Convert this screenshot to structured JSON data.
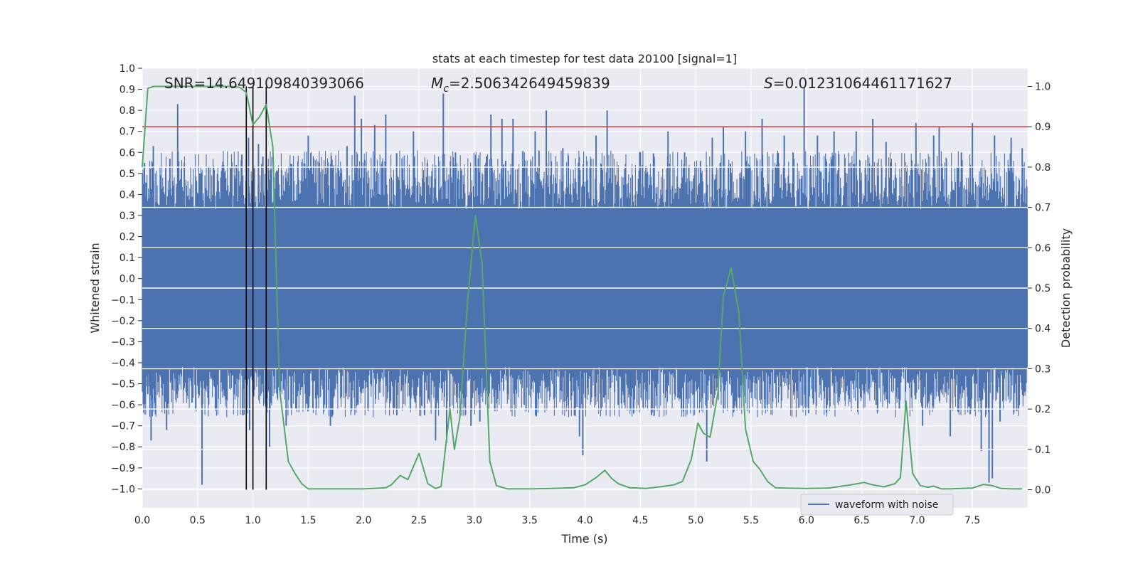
{
  "chart_data": {
    "type": "line",
    "title": "stats at each timestep for test data 20100 [signal=1]",
    "xlabel": "Time (s)",
    "ylabel": "Whitened strain",
    "y2label": "Detection probability",
    "xlim": [
      0.0,
      8.0
    ],
    "ylim": [
      -1.09,
      1.0
    ],
    "y2lim": [
      -0.045,
      1.045
    ],
    "xticks": [
      "0.0",
      "0.5",
      "1.0",
      "1.5",
      "2.0",
      "2.5",
      "3.0",
      "3.5",
      "4.0",
      "4.5",
      "5.0",
      "5.5",
      "6.0",
      "6.5",
      "7.0",
      "7.5"
    ],
    "yticks": [
      "1.0",
      "0.9",
      "0.8",
      "0.7",
      "0.6",
      "0.5",
      "0.4",
      "0.3",
      "0.2",
      "0.1",
      "0.0",
      "−0.1",
      "−0.2",
      "−0.3",
      "−0.4",
      "−0.5",
      "−0.6",
      "−0.7",
      "−0.8",
      "−0.9",
      "−1.0"
    ],
    "y2ticks": [
      "1.0",
      "0.9",
      "0.8",
      "0.7",
      "0.6",
      "0.5",
      "0.4",
      "0.3",
      "0.2",
      "0.1",
      "0.0"
    ],
    "annotations": {
      "snr": "SNR=14.649109840393066",
      "mc_symbol": "M",
      "mc_sub": "c",
      "mc_value": "=2.506342649459839",
      "s_symbol": "S",
      "s_value": "=0.01231064461171627"
    },
    "legend": {
      "label": "waveform with noise",
      "position": "lower-right"
    },
    "threshold": {
      "y2": 0.9,
      "color": "#c44e52"
    },
    "vlines_x": [
      0.94,
      1.0,
      1.12
    ],
    "waveform": {
      "name": "waveform with noise",
      "color": "#4c72b0",
      "x_range": [
        0.0,
        8.0
      ],
      "core_range": [
        -0.42,
        0.33
      ],
      "spikes": [
        [
          0.02,
          0.55
        ],
        [
          0.05,
          -0.55
        ],
        [
          0.1,
          0.63
        ],
        [
          0.08,
          -0.77
        ],
        [
          0.22,
          -0.72
        ],
        [
          0.32,
          0.83
        ],
        [
          0.38,
          0.55
        ],
        [
          0.25,
          0.57
        ],
        [
          0.54,
          -0.98
        ],
        [
          0.52,
          0.5
        ],
        [
          0.6,
          -0.6
        ],
        [
          0.85,
          0.54
        ],
        [
          0.9,
          0.59
        ],
        [
          0.91,
          -0.65
        ],
        [
          0.96,
          0.67
        ],
        [
          0.97,
          -0.72
        ],
        [
          1.05,
          0.64
        ],
        [
          1.09,
          0.58
        ],
        [
          1.15,
          -0.8
        ],
        [
          1.22,
          0.44
        ],
        [
          1.3,
          -0.7
        ],
        [
          1.35,
          -0.62
        ],
        [
          1.5,
          0.68
        ],
        [
          1.6,
          0.55
        ],
        [
          1.7,
          -0.7
        ],
        [
          1.85,
          0.63
        ],
        [
          1.92,
          0.87
        ],
        [
          1.98,
          0.76
        ],
        [
          2.1,
          0.73
        ],
        [
          2.2,
          0.78
        ],
        [
          2.3,
          -0.65
        ],
        [
          2.45,
          0.7
        ],
        [
          2.55,
          -0.65
        ],
        [
          2.65,
          -0.77
        ],
        [
          2.72,
          0.88
        ],
        [
          2.75,
          -0.78
        ],
        [
          2.83,
          0.6
        ],
        [
          2.97,
          -0.7
        ],
        [
          3.05,
          -0.68
        ],
        [
          3.15,
          0.78
        ],
        [
          3.25,
          0.76
        ],
        [
          3.35,
          0.76
        ],
        [
          3.45,
          -0.6
        ],
        [
          3.55,
          0.7
        ],
        [
          3.65,
          0.8
        ],
        [
          3.8,
          0.62
        ],
        [
          3.95,
          -0.75
        ],
        [
          3.98,
          -0.84
        ],
        [
          4.1,
          0.68
        ],
        [
          4.2,
          0.8
        ],
        [
          4.3,
          -0.6
        ],
        [
          4.5,
          0.6
        ],
        [
          4.6,
          -0.65
        ],
        [
          4.75,
          0.7
        ],
        [
          4.9,
          0.6
        ],
        [
          5.1,
          -0.87
        ],
        [
          5.15,
          0.67
        ],
        [
          5.25,
          0.72
        ],
        [
          5.45,
          0.7
        ],
        [
          5.6,
          0.76
        ],
        [
          5.8,
          0.68
        ],
        [
          5.98,
          0.91
        ],
        [
          6.02,
          -0.64
        ],
        [
          6.1,
          0.68
        ],
        [
          6.25,
          0.7
        ],
        [
          6.45,
          0.7
        ],
        [
          6.6,
          0.76
        ],
        [
          6.63,
          -0.6
        ],
        [
          6.72,
          0.65
        ],
        [
          6.84,
          -0.62
        ],
        [
          6.99,
          0.74
        ],
        [
          7.05,
          -0.7
        ],
        [
          7.15,
          0.68
        ],
        [
          7.3,
          -0.75
        ],
        [
          7.4,
          0.6
        ],
        [
          7.5,
          0.74
        ],
        [
          7.58,
          -0.82
        ],
        [
          7.65,
          -0.97
        ],
        [
          7.68,
          -0.95
        ],
        [
          7.7,
          0.68
        ],
        [
          7.75,
          -0.68
        ],
        [
          7.85,
          0.67
        ],
        [
          7.9,
          -0.63
        ],
        [
          7.95,
          0.62
        ],
        [
          0.45,
          -0.59
        ],
        [
          1.95,
          -0.6
        ],
        [
          3.3,
          -0.55
        ],
        [
          4.4,
          -0.55
        ],
        [
          6.35,
          -0.58
        ],
        [
          7.2,
          0.72
        ]
      ]
    },
    "detection_probability": {
      "name": "Detection probability",
      "color": "#55a868",
      "x": [
        0.0,
        0.05,
        0.1,
        0.2,
        0.4,
        0.6,
        0.8,
        0.88,
        0.94,
        1.0,
        1.06,
        1.12,
        1.18,
        1.24,
        1.32,
        1.38,
        1.44,
        1.5,
        1.6,
        1.8,
        2.0,
        2.2,
        2.25,
        2.33,
        2.4,
        2.5,
        2.58,
        2.65,
        2.7,
        2.78,
        2.82,
        2.87,
        2.94,
        3.01,
        3.07,
        3.14,
        3.2,
        3.3,
        3.5,
        3.7,
        3.9,
        4.0,
        4.1,
        4.18,
        4.24,
        4.3,
        4.4,
        4.55,
        4.7,
        4.8,
        4.88,
        4.96,
        5.02,
        5.07,
        5.13,
        5.2,
        5.25,
        5.32,
        5.39,
        5.45,
        5.52,
        5.58,
        5.65,
        5.72,
        5.8,
        6.0,
        6.2,
        6.4,
        6.52,
        6.6,
        6.7,
        6.8,
        6.85,
        6.9,
        6.96,
        7.03,
        7.1,
        7.15,
        7.22,
        7.3,
        7.4,
        7.5,
        7.6,
        7.68,
        7.76,
        7.85,
        7.95
      ],
      "y": [
        0.8,
        0.995,
        1.0,
        1.0,
        1.0,
        1.0,
        1.0,
        0.998,
        0.985,
        0.905,
        0.925,
        0.955,
        0.85,
        0.25,
        0.07,
        0.04,
        0.015,
        0.002,
        0.002,
        0.002,
        0.002,
        0.005,
        0.012,
        0.035,
        0.025,
        0.09,
        0.015,
        0.003,
        0.008,
        0.2,
        0.1,
        0.18,
        0.47,
        0.68,
        0.56,
        0.07,
        0.01,
        0.002,
        0.002,
        0.003,
        0.005,
        0.012,
        0.03,
        0.048,
        0.028,
        0.015,
        0.005,
        0.003,
        0.008,
        0.012,
        0.02,
        0.075,
        0.165,
        0.14,
        0.13,
        0.24,
        0.48,
        0.55,
        0.44,
        0.15,
        0.07,
        0.05,
        0.02,
        0.005,
        0.004,
        0.003,
        0.004,
        0.012,
        0.018,
        0.012,
        0.007,
        0.015,
        0.03,
        0.22,
        0.04,
        0.01,
        0.006,
        0.009,
        0.002,
        0.002,
        0.003,
        0.004,
        0.013,
        0.01,
        0.003,
        0.002,
        0.002
      ]
    }
  }
}
